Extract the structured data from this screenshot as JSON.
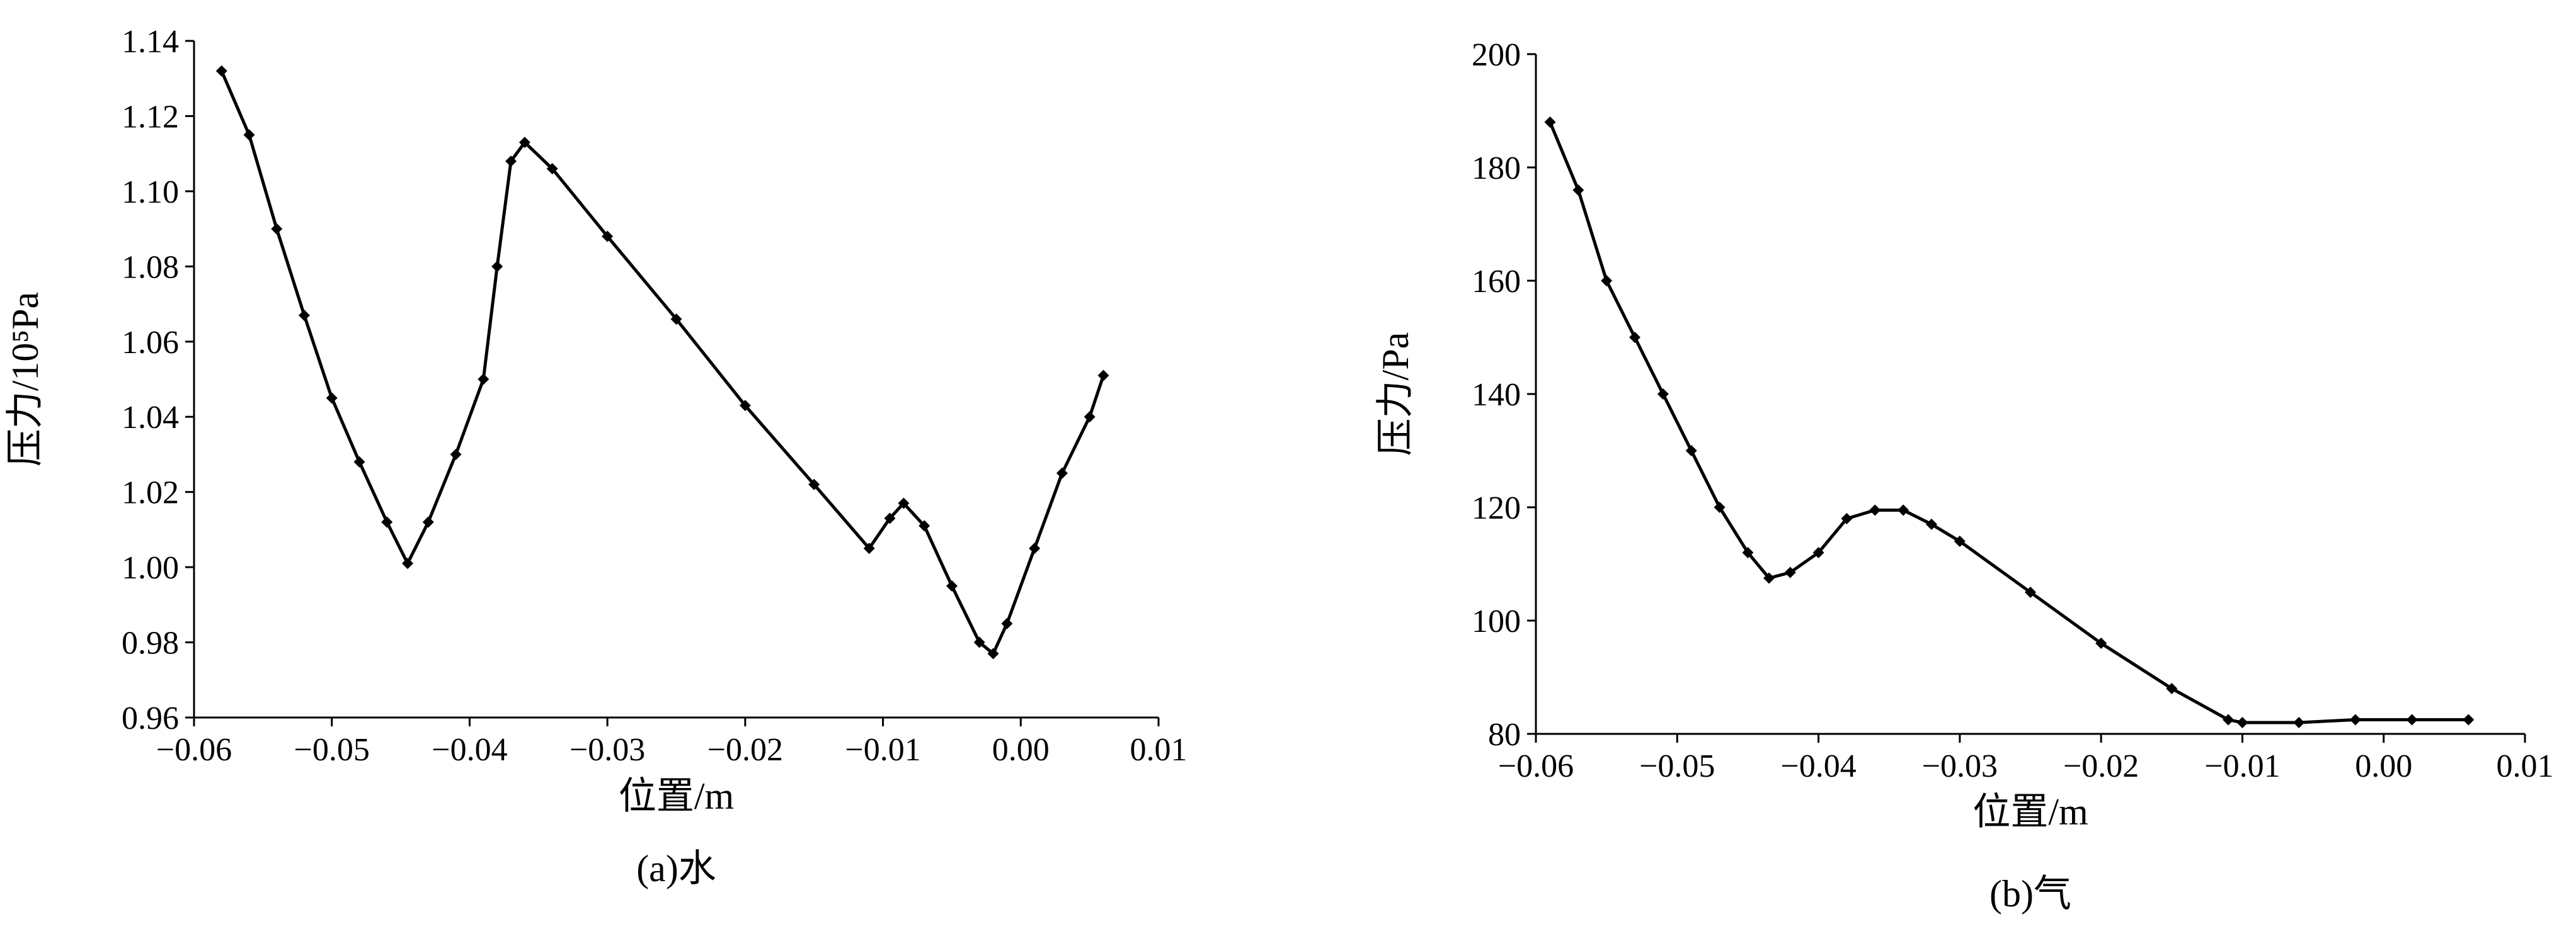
{
  "chart_data": [
    {
      "type": "scatter",
      "caption": "(a)水",
      "x_label": "位置/m",
      "y_label": "压力/10⁵Pa",
      "color": "#000000",
      "xlim": [
        -0.06,
        0.01
      ],
      "ylim": [
        0.96,
        1.14
      ],
      "xticks": [
        {
          "value": -0.06,
          "label": "−0.06"
        },
        {
          "value": -0.05,
          "label": "−0.05"
        },
        {
          "value": -0.04,
          "label": "−0.04"
        },
        {
          "value": -0.03,
          "label": "−0.03"
        },
        {
          "value": -0.02,
          "label": "−0.02"
        },
        {
          "value": -0.01,
          "label": "−0.01"
        },
        {
          "value": 0,
          "label": "0.00"
        },
        0.01
      ],
      "yticks": [
        0.96,
        0.98,
        {
          "value": 1,
          "label": "1.00"
        },
        1.02,
        1.04,
        1.06,
        1.08,
        {
          "value": 1.1,
          "label": "1.10"
        },
        1.12,
        1.14
      ],
      "x": [
        -0.058,
        -0.056,
        -0.054,
        -0.052,
        -0.05,
        -0.048,
        -0.046,
        -0.0445,
        -0.043,
        -0.041,
        -0.039,
        -0.038,
        -0.037,
        -0.036,
        -0.034,
        -0.03,
        -0.025,
        -0.02,
        -0.015,
        -0.011,
        -0.0095,
        -0.0085,
        -0.007,
        -0.005,
        -0.003,
        -0.002,
        -0.001,
        0.001,
        0.003,
        0.005,
        0.006
      ],
      "values": [
        1.132,
        1.115,
        1.09,
        1.067,
        1.045,
        1.028,
        1.012,
        1.001,
        1.012,
        1.03,
        1.05,
        1.08,
        1.108,
        1.113,
        1.106,
        1.088,
        1.066,
        1.043,
        1.022,
        1.005,
        1.013,
        1.017,
        1.011,
        0.995,
        0.98,
        0.977,
        0.985,
        1.005,
        1.025,
        1.04,
        1.051
      ]
    },
    {
      "type": "scatter",
      "caption": "(b)气",
      "x_label": "位置/m",
      "y_label": "压力/Pa",
      "color": "#000000",
      "xlim": [
        -0.06,
        0.01
      ],
      "ylim": [
        80,
        200
      ],
      "xticks": [
        {
          "value": -0.06,
          "label": "−0.06"
        },
        {
          "value": -0.05,
          "label": "−0.05"
        },
        {
          "value": -0.04,
          "label": "−0.04"
        },
        {
          "value": -0.03,
          "label": "−0.03"
        },
        {
          "value": -0.02,
          "label": "−0.02"
        },
        {
          "value": -0.01,
          "label": "−0.01"
        },
        {
          "value": 0,
          "label": "0.00"
        },
        0.01
      ],
      "yticks": [
        80,
        100,
        120,
        140,
        160,
        180,
        200
      ],
      "x": [
        -0.059,
        -0.057,
        -0.055,
        -0.053,
        -0.051,
        -0.049,
        -0.047,
        -0.045,
        -0.0435,
        -0.042,
        -0.04,
        -0.038,
        -0.036,
        -0.034,
        -0.032,
        -0.03,
        -0.025,
        -0.02,
        -0.015,
        -0.011,
        -0.01,
        -0.006,
        -0.002,
        0.002,
        0.006
      ],
      "values": [
        188,
        176,
        160,
        150,
        140,
        130,
        120,
        112,
        107.5,
        108.5,
        112,
        118,
        119.5,
        119.5,
        117,
        114,
        105,
        96,
        88,
        82.5,
        82,
        82,
        82.5,
        82.5,
        82.5
      ]
    }
  ]
}
